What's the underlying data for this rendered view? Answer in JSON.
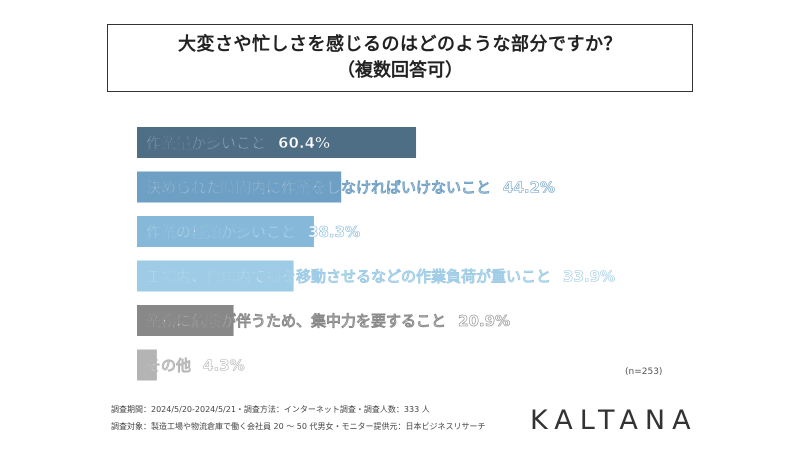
{
  "title": {
    "line1": "大変さや忙しさを感じるのはどのような部分ですか？",
    "line2": "（複数回答可）"
  },
  "chart_data": {
    "type": "bar",
    "orientation": "horizontal",
    "categories": [
      "作業量が多いこと",
      "決められた時間内に作業をしなければいけないこと",
      "作業の種類が多いこと",
      "工場内、倉庫内で物を移動させるなどの作業負荷が重いこと",
      "業務に危険が伴うため、集中力を要すること",
      "その他"
    ],
    "values": [
      60.4,
      44.2,
      38.3,
      33.9,
      20.9,
      4.3
    ],
    "value_labels": [
      "60.4%",
      "44.2%",
      "38.3%",
      "33.9%",
      "20.9%",
      "4.3%"
    ],
    "colors": [
      "#4e6e86",
      "#6e9fc4",
      "#86b9d9",
      "#9ecbe6",
      "#888888",
      "#b4b4b4"
    ],
    "xlim": [
      0,
      100
    ],
    "grid": false,
    "legend": "none"
  },
  "sample_note": "(n=253)",
  "footnotes": [
    "調査期間：2024/5/20-2024/5/21・調査方法：インターネット調査・調査人数：333 人",
    "調査対象：製造工場や物流倉庫で働く会社員 20 ～ 50 代男女・モニター提供元：日本ビジネスリサーチ"
  ],
  "brand": "KALTANA"
}
